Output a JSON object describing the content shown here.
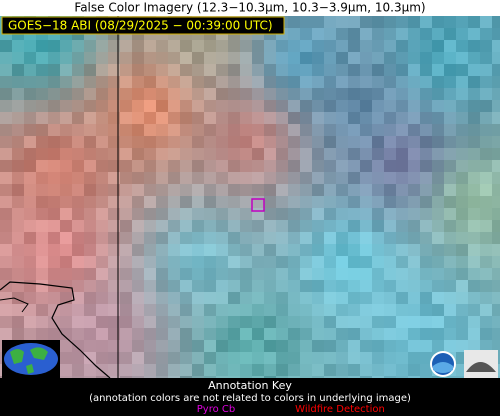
{
  "title": "False Color Imagery (12.3−10.3µm, 10.3−3.9µm, 10.3µm)",
  "image_label": "GOES−18 ABI (08/29/2025 − 00:39:00 UTC)",
  "annotation_key": {
    "title": "Annotation Key",
    "note": "(annotation colors are not related to colors in underlying image)",
    "items": [
      "Pyro Cb",
      "Wildfire Detection"
    ]
  }
}
